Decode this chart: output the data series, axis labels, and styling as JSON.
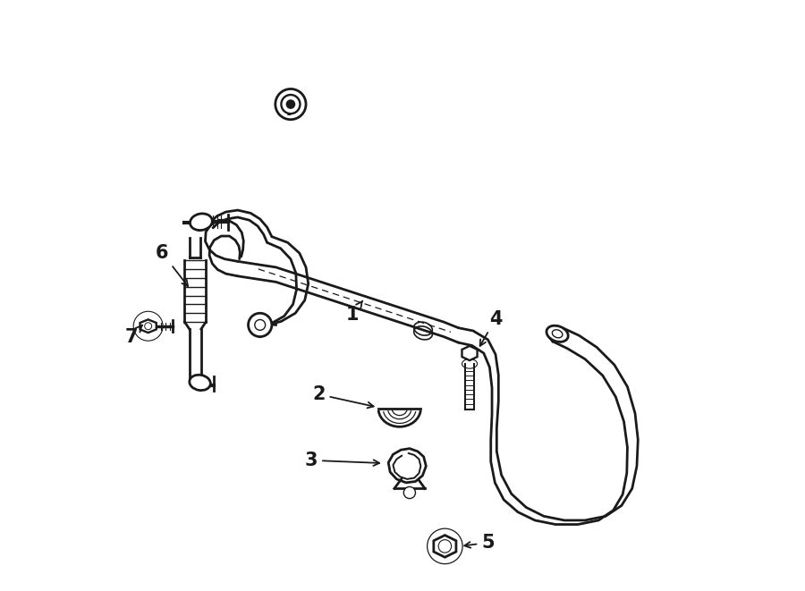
{
  "bg_color": "#ffffff",
  "line_color": "#1a1a1a",
  "line_width": 2.0,
  "label_fontsize": 15
}
